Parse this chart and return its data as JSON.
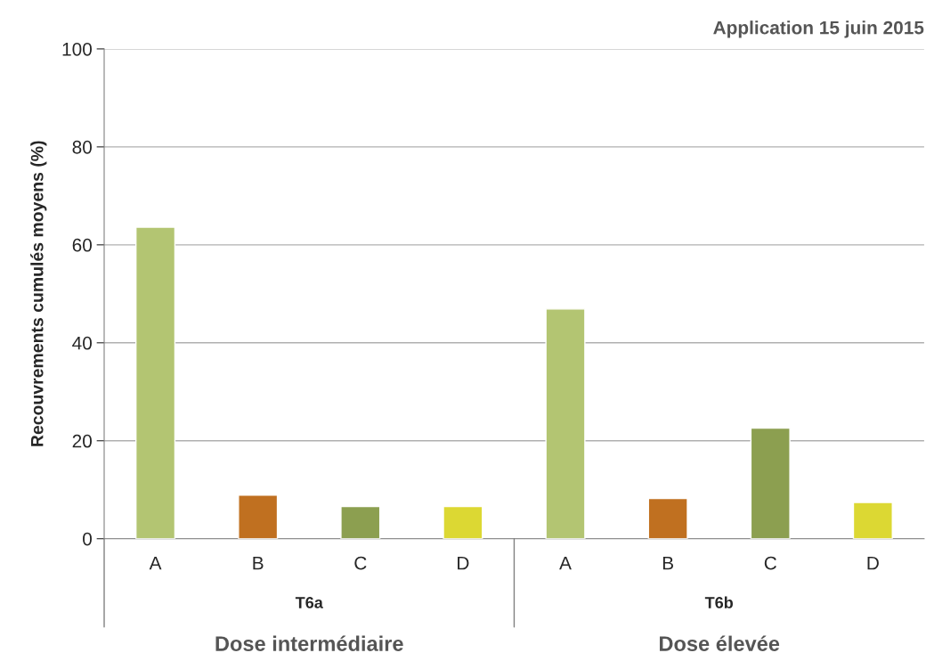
{
  "chart_data": {
    "type": "bar",
    "title": "Application 15 juin 2015",
    "ylabel": "Recouvrements cumulés moyens (%)",
    "categories": [
      "A",
      "B",
      "C",
      "D",
      "A",
      "B",
      "C",
      "D"
    ],
    "values": [
      63.6,
      8.9,
      6.6,
      6.6,
      46.9,
      8.2,
      22.6,
      7.4
    ],
    "colors": [
      "#b3c572",
      "#c07020",
      "#8c9f50",
      "#dcd833",
      "#b3c572",
      "#c07020",
      "#8c9f50",
      "#dcd833"
    ],
    "ylim": [
      0,
      100
    ],
    "yticks": [
      0,
      20,
      40,
      60,
      80,
      100
    ],
    "grid": "y",
    "annotations": [
      "T6a",
      "T6b",
      "Dose intermédiaire",
      "Dose élevée"
    ]
  }
}
